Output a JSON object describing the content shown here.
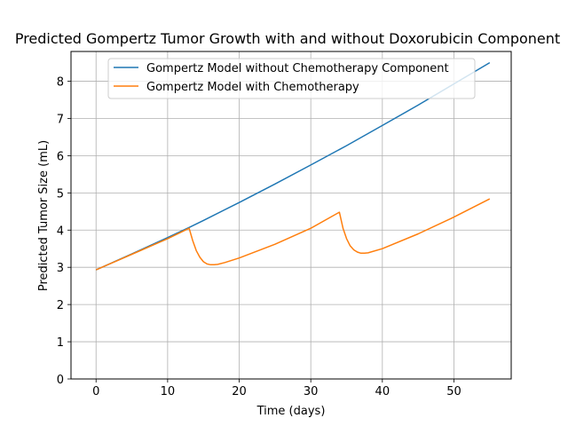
{
  "chart_data": {
    "type": "line",
    "title": "Predicted Gompertz Tumor Growth with and without Doxorubicin Component",
    "xlabel": "Time (days)",
    "ylabel": "Predicted Tumor Size (mL)",
    "xlim": [
      -3.5,
      58
    ],
    "ylim": [
      0,
      8.8
    ],
    "xticks": [
      0,
      10,
      20,
      30,
      40,
      50
    ],
    "yticks": [
      0,
      1,
      2,
      3,
      4,
      5,
      6,
      7,
      8
    ],
    "grid": true,
    "legend_position": "top-center",
    "series": [
      {
        "name": "Gompertz Model without Chemotherapy Component",
        "color": "#1f77b4",
        "x": [
          0,
          5,
          10,
          13,
          15,
          20,
          25,
          30,
          35,
          40,
          45,
          50,
          55
        ],
        "y": [
          2.93,
          3.36,
          3.8,
          4.07,
          4.26,
          4.74,
          5.24,
          5.75,
          6.27,
          6.81,
          7.36,
          7.93,
          8.5
        ]
      },
      {
        "name": "Gompertz Model with Chemotherapy",
        "color": "#ff7f0e",
        "x": [
          0,
          5,
          10,
          13,
          13.5,
          14,
          14.5,
          15,
          15.5,
          16,
          16.5,
          17,
          18,
          20,
          25,
          30,
          34,
          34.5,
          35,
          35.5,
          36,
          36.5,
          37,
          37.5,
          38,
          40,
          45,
          50,
          55
        ],
        "y": [
          2.93,
          3.35,
          3.77,
          4.05,
          3.72,
          3.45,
          3.27,
          3.15,
          3.09,
          3.07,
          3.07,
          3.08,
          3.13,
          3.25,
          3.62,
          4.05,
          4.48,
          4.05,
          3.77,
          3.58,
          3.47,
          3.41,
          3.38,
          3.38,
          3.39,
          3.5,
          3.9,
          4.35,
          4.84
        ]
      }
    ]
  }
}
